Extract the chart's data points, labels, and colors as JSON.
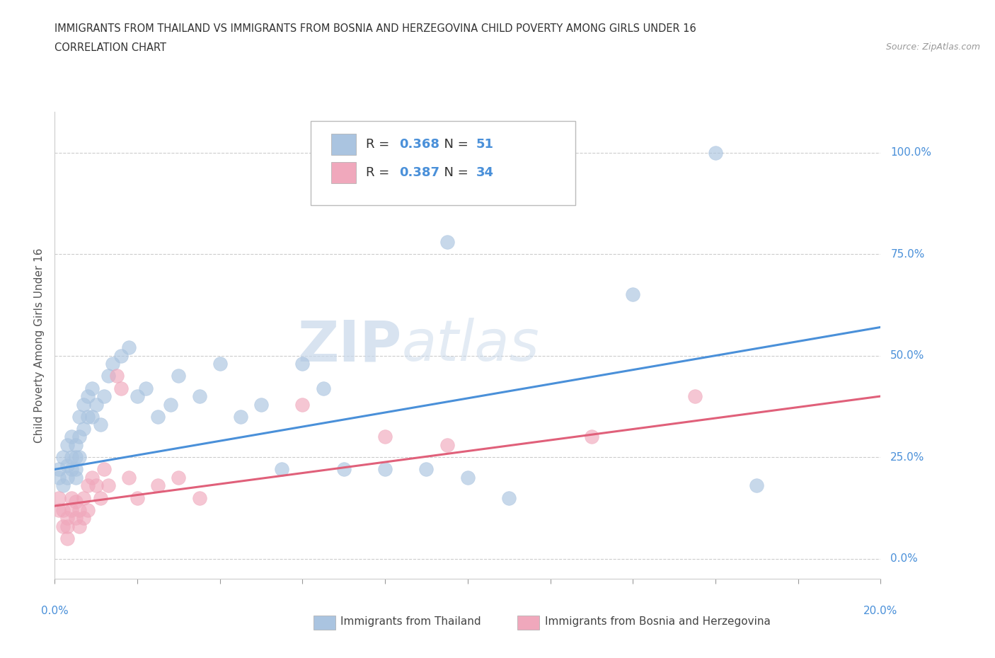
{
  "title_line1": "IMMIGRANTS FROM THAILAND VS IMMIGRANTS FROM BOSNIA AND HERZEGOVINA CHILD POVERTY AMONG GIRLS UNDER 16",
  "title_line2": "CORRELATION CHART",
  "source_text": "Source: ZipAtlas.com",
  "ylabel": "Child Poverty Among Girls Under 16",
  "xlim": [
    0.0,
    0.2
  ],
  "ylim": [
    -0.05,
    1.1
  ],
  "yticks": [
    0.0,
    0.25,
    0.5,
    0.75,
    1.0
  ],
  "ytick_labels": [
    "0.0%",
    "25.0%",
    "50.0%",
    "75.0%",
    "100.0%"
  ],
  "blue_color": "#aac4e0",
  "pink_color": "#f0a8bc",
  "blue_line_color": "#4a90d9",
  "pink_line_color": "#e0607a",
  "R_blue": "0.368",
  "N_blue": "51",
  "R_pink": "0.387",
  "N_pink": "34",
  "legend_blue_label": "Immigrants from Thailand",
  "legend_pink_label": "Immigrants from Bosnia and Herzegovina",
  "watermark_zip": "ZIP",
  "watermark_atlas": "atlas",
  "thailand_x": [
    0.001,
    0.001,
    0.002,
    0.002,
    0.003,
    0.003,
    0.003,
    0.004,
    0.004,
    0.004,
    0.005,
    0.005,
    0.005,
    0.005,
    0.006,
    0.006,
    0.006,
    0.007,
    0.007,
    0.008,
    0.008,
    0.009,
    0.009,
    0.01,
    0.011,
    0.012,
    0.013,
    0.014,
    0.016,
    0.018,
    0.02,
    0.022,
    0.025,
    0.028,
    0.03,
    0.035,
    0.04,
    0.045,
    0.05,
    0.055,
    0.06,
    0.065,
    0.07,
    0.08,
    0.09,
    0.095,
    0.1,
    0.11,
    0.14,
    0.16,
    0.17
  ],
  "thailand_y": [
    0.2,
    0.22,
    0.18,
    0.25,
    0.2,
    0.23,
    0.28,
    0.22,
    0.25,
    0.3,
    0.2,
    0.22,
    0.25,
    0.28,
    0.25,
    0.3,
    0.35,
    0.32,
    0.38,
    0.35,
    0.4,
    0.35,
    0.42,
    0.38,
    0.33,
    0.4,
    0.45,
    0.48,
    0.5,
    0.52,
    0.4,
    0.42,
    0.35,
    0.38,
    0.45,
    0.4,
    0.48,
    0.35,
    0.38,
    0.22,
    0.48,
    0.42,
    0.22,
    0.22,
    0.22,
    0.78,
    0.2,
    0.15,
    0.65,
    1.0,
    0.18
  ],
  "bosnia_x": [
    0.001,
    0.001,
    0.002,
    0.002,
    0.003,
    0.003,
    0.003,
    0.004,
    0.004,
    0.005,
    0.005,
    0.006,
    0.006,
    0.007,
    0.007,
    0.008,
    0.008,
    0.009,
    0.01,
    0.011,
    0.012,
    0.013,
    0.015,
    0.016,
    0.018,
    0.02,
    0.025,
    0.03,
    0.035,
    0.06,
    0.08,
    0.095,
    0.13,
    0.155
  ],
  "bosnia_y": [
    0.15,
    0.12,
    0.08,
    0.12,
    0.1,
    0.08,
    0.05,
    0.12,
    0.15,
    0.1,
    0.14,
    0.12,
    0.08,
    0.1,
    0.15,
    0.18,
    0.12,
    0.2,
    0.18,
    0.15,
    0.22,
    0.18,
    0.45,
    0.42,
    0.2,
    0.15,
    0.18,
    0.2,
    0.15,
    0.38,
    0.3,
    0.28,
    0.3,
    0.4
  ]
}
